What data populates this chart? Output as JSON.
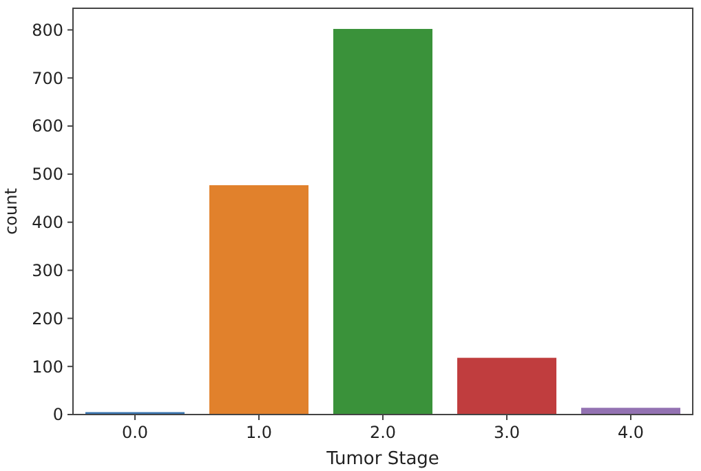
{
  "chart_data": {
    "type": "bar",
    "xlabel": "Tumor Stage",
    "ylabel": "count",
    "categories": [
      "0.0",
      "1.0",
      "2.0",
      "3.0",
      "4.0"
    ],
    "values": [
      5,
      477,
      802,
      118,
      14
    ],
    "colors": [
      "#3a75b0",
      "#e1812c",
      "#3a923a",
      "#c03d3e",
      "#9372b2"
    ],
    "ylim": [
      0,
      845
    ],
    "yticks": [
      0,
      100,
      200,
      300,
      400,
      500,
      600,
      700,
      800
    ],
    "grid": false
  }
}
